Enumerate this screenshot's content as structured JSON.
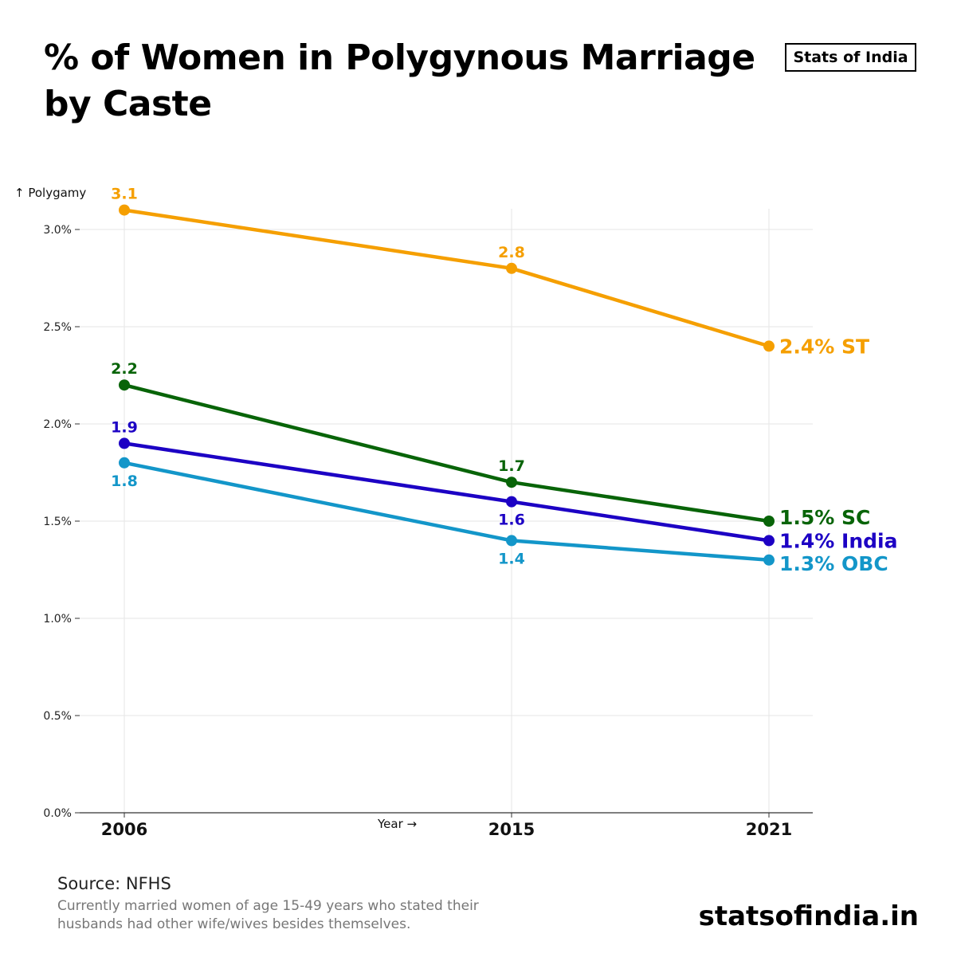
{
  "header": {
    "title": "% of Women in Polygynous Marriage by Caste",
    "brand": "Stats of India"
  },
  "footer": {
    "source": "Source: NFHS",
    "note": "Currently married women of age 15-49 years  who stated their husbands had other wife/wives besides themselves.",
    "site": "statsofindia.in"
  },
  "chart_data": {
    "type": "line",
    "title": "% of Women in Polygynous Marriage by Caste",
    "xlabel": "Year →",
    "ylabel": "↑ Polygamy",
    "x": [
      "2006",
      "2015",
      "2021"
    ],
    "ylim": [
      0,
      3.0
    ],
    "yticks": [
      "0.0%",
      "0.5%",
      "1.0%",
      "1.5%",
      "2.0%",
      "2.5%",
      "3.0%"
    ],
    "grid": true,
    "series": [
      {
        "name": "ST",
        "end_label": "2.4% ST",
        "color": "#f59f00",
        "values": [
          3.1,
          2.8,
          2.4
        ],
        "point_labels": [
          "3.1",
          "2.8",
          ""
        ],
        "label_pos": [
          "above",
          "above",
          "none"
        ]
      },
      {
        "name": "SC",
        "end_label": "1.5% SC",
        "color": "#086408",
        "values": [
          2.2,
          1.7,
          1.5
        ],
        "point_labels": [
          "2.2",
          "1.7",
          ""
        ],
        "label_pos": [
          "above",
          "above",
          "none"
        ]
      },
      {
        "name": "India",
        "end_label": "1.4% India",
        "color": "#1c00c4",
        "values": [
          1.9,
          1.6,
          1.4
        ],
        "point_labels": [
          "1.9",
          "1.6",
          ""
        ],
        "label_pos": [
          "above",
          "below",
          "none"
        ]
      },
      {
        "name": "OBC",
        "end_label": "1.3% OBC",
        "color": "#1396c9",
        "values": [
          1.8,
          1.4,
          1.3
        ],
        "point_labels": [
          "1.8",
          "1.4",
          ""
        ],
        "label_pos": [
          "below",
          "below",
          "none"
        ]
      }
    ]
  }
}
